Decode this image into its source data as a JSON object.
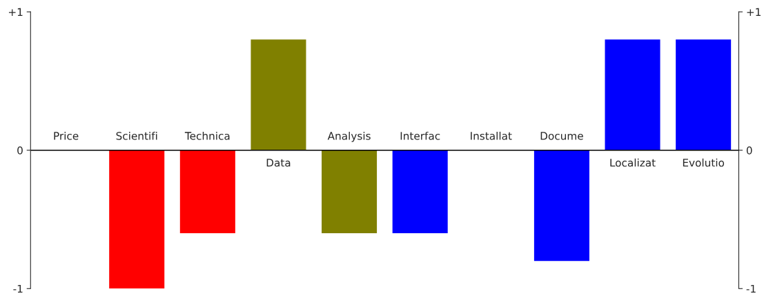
{
  "chart_data": {
    "type": "bar",
    "categories": [
      "Price",
      "Scientifi",
      "Technica",
      "Data",
      "Analysis",
      "Interfac",
      "Installat",
      "Docume",
      "Localizat",
      "Evolutio"
    ],
    "values": [
      0,
      -1,
      -0.6,
      0.8,
      -0.6,
      -0.6,
      0,
      -0.8,
      0.8,
      0.8
    ],
    "colors": [
      "#ff0000",
      "#ff0000",
      "#ff0000",
      "#808000",
      "#808000",
      "#0000ff",
      "#0000ff",
      "#0000ff",
      "#0000ff",
      "#0000ff"
    ],
    "ylim": [
      -1,
      1
    ],
    "yticks": [
      {
        "value": -1,
        "label": "-1"
      },
      0,
      {
        "value": 1,
        "label": "+1"
      }
    ],
    "y2lim": [
      -1,
      1
    ],
    "y2ticks": [
      {
        "value": -1,
        "label": "-1"
      },
      0,
      {
        "value": 1,
        "label": "+1"
      }
    ],
    "grid": false,
    "legend": false
  }
}
